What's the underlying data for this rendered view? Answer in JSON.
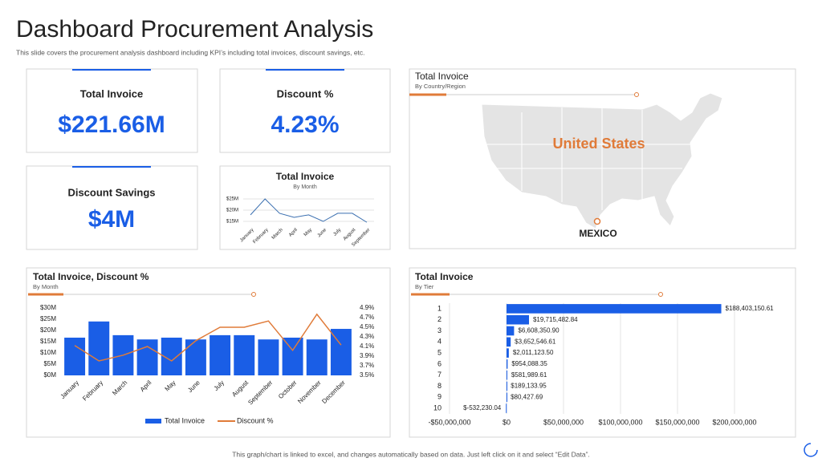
{
  "header": {
    "title": "Dashboard Procurement Analysis",
    "subtitle": "This slide covers the procurement analysis dashboard including KPI’s including total invoices, discount savings, etc."
  },
  "kpis": [
    {
      "label": "Total Invoice",
      "value": "$221.66M"
    },
    {
      "label": "Discount %",
      "value": "4.23%"
    },
    {
      "label": "Discount Savings",
      "value": "$4M"
    }
  ],
  "map": {
    "title": "Total Invoice",
    "subtitle": "By Country/Region",
    "regions": [
      "United States",
      "MEXICO"
    ]
  },
  "chart_data": [
    {
      "type": "line",
      "title": "Total Invoice",
      "subtitle": "By Month",
      "categories": [
        "January",
        "February",
        "March",
        "April",
        "May",
        "June",
        "July",
        "August",
        "September"
      ],
      "values": [
        17.9,
        25,
        18.6,
        16.8,
        17.9,
        15,
        18.6,
        18.6,
        14.6
      ],
      "color": "#3a6fb0",
      "ylim": [
        13,
        27
      ],
      "yticks": [
        {
          "value": 15,
          "label": "$15M"
        },
        {
          "value": 20,
          "label": "$20M"
        },
        {
          "value": 25,
          "label": "$25M"
        }
      ],
      "grid": true
    },
    {
      "type": "combo",
      "title": "Total Invoice, Discount %",
      "subtitle": "By Month",
      "categories": [
        "January",
        "February",
        "March",
        "April",
        "May",
        "June",
        "July",
        "August",
        "September",
        "October",
        "November",
        "December"
      ],
      "series": [
        {
          "name": "Total Invoice",
          "color": "#1a5ee6",
          "values": [
            16.8,
            24,
            17.9,
            16,
            16.8,
            16,
            17.9,
            17.9,
            16,
            16.8,
            16,
            20.7
          ]
        },
        {
          "name": "Discount %",
          "color": "#e07b39",
          "axis": "y2",
          "values": [
            4.12,
            3.8,
            3.92,
            4.1,
            3.8,
            4.22,
            4.5,
            4.5,
            4.63,
            4.02,
            4.77,
            4.13
          ]
        }
      ],
      "ylim": [
        0,
        30
      ],
      "yticks": [
        {
          "value": 0,
          "label": "$0M"
        },
        {
          "value": 5,
          "label": "$5M"
        },
        {
          "value": 10,
          "label": "$10M"
        },
        {
          "value": 15,
          "label": "$15M"
        },
        {
          "value": 20,
          "label": "$20M"
        },
        {
          "value": 25,
          "label": "$25M"
        },
        {
          "value": 30,
          "label": "$30M"
        }
      ],
      "y2lim": [
        3.5,
        4.9
      ],
      "y2ticks": [
        {
          "value": 3.5,
          "label": "3.5%"
        },
        {
          "value": 3.7,
          "label": "3.7%"
        },
        {
          "value": 3.9,
          "label": "3.9%"
        },
        {
          "value": 4.1,
          "label": "4.1%"
        },
        {
          "value": 4.3,
          "label": "4.3%"
        },
        {
          "value": 4.5,
          "label": "4.5%"
        },
        {
          "value": 4.7,
          "label": "4.7%"
        },
        {
          "value": 4.9,
          "label": "4.9%"
        }
      ]
    },
    {
      "type": "hbar",
      "title": "Total Invoice",
      "subtitle": "By Tier",
      "categories": [
        "1",
        "2",
        "3",
        "4",
        "5",
        "6",
        "7",
        "8",
        "9",
        "10"
      ],
      "values": [
        188403150.61,
        19715482.84,
        6608350.9,
        3652546.61,
        2011123.5,
        954088.35,
        581989.61,
        189133.95,
        80427.69,
        -532230.04
      ],
      "value_labels": [
        "$188,403,150.61",
        "$19,715,482.84",
        "$6,608,350.90",
        "$3,652,546.61",
        "$2,011,123.50",
        "$954,088.35",
        "$581,989.61",
        "$189,133.95",
        "$80,427.69",
        "$-532,230.04"
      ],
      "color": "#1a5ee6",
      "xlim": [
        -50000000,
        200000000
      ],
      "xticks": [
        {
          "value": -50000000,
          "label": "-$50,000,000"
        },
        {
          "value": 0,
          "label": "$0"
        },
        {
          "value": 50000000,
          "label": "$50,000,000"
        },
        {
          "value": 100000000,
          "label": "$100,000,000"
        },
        {
          "value": 150000000,
          "label": "$150,000,000"
        },
        {
          "value": 200000000,
          "label": "$200,000,000"
        }
      ],
      "grid": true
    }
  ],
  "footer": "This graph/chart is linked to excel, and changes automatically based on data. Just left click on it and select “Edit Data”."
}
